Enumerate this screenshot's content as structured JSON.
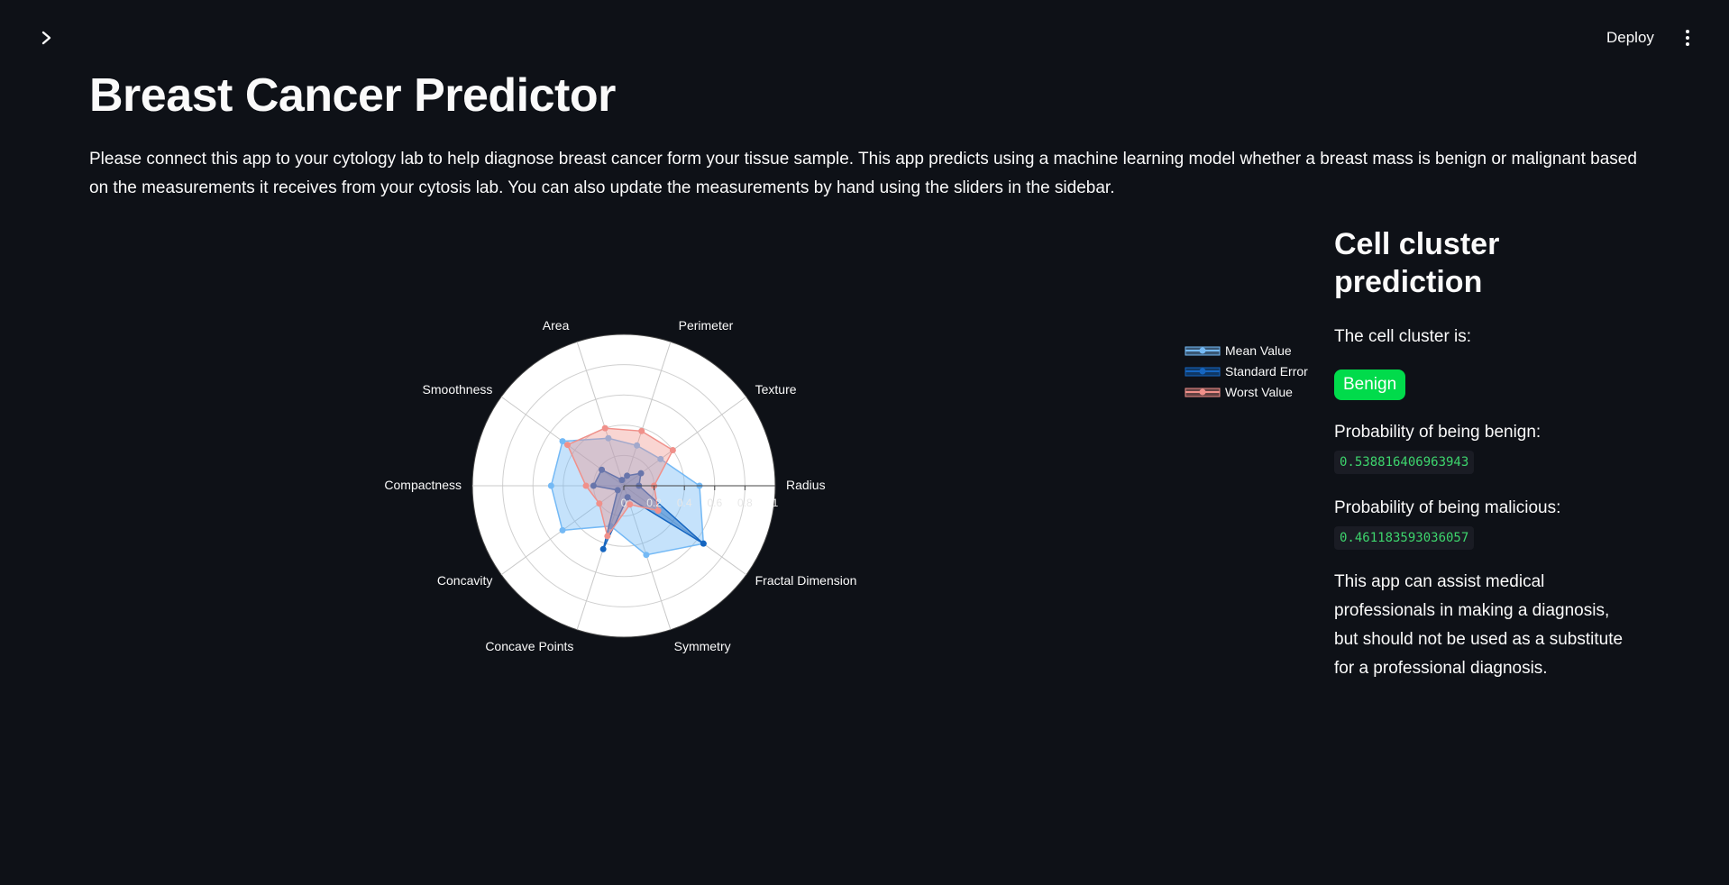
{
  "header": {
    "deploy_label": "Deploy"
  },
  "page": {
    "title": "Breast Cancer Predictor",
    "description": "Please connect this app to your cytology lab to help diagnose breast cancer form your tissue sample. This app predicts using a machine learning model whether a breast mass is benign or malignant based on the measurements it receives from your cytosis lab. You can also update the measurements by hand using the sliders in the sidebar."
  },
  "prediction": {
    "heading": "Cell cluster prediction",
    "cluster_label": "The cell cluster is:",
    "result": "Benign",
    "benign_label": "Probability of being benign:",
    "benign_value": "0.538816406963943",
    "malicious_label": "Probability of being malicious:",
    "malicious_value": "0.461183593036057",
    "disclaimer": "This app can assist medical professionals in making a diagnosis, but should not be used as a substitute for a professional diagnosis."
  },
  "chart_data": {
    "type": "radar",
    "categories": [
      "Radius",
      "Texture",
      "Perimeter",
      "Area",
      "Smoothness",
      "Compactness",
      "Concavity",
      "Concave Points",
      "Symmetry",
      "Fractal Dimension"
    ],
    "radial_ticks": [
      "0",
      "0.2",
      "0.4",
      "0.6",
      "0.8",
      "1"
    ],
    "radial_range": [
      0,
      1
    ],
    "legend_position": "right",
    "series": [
      {
        "name": "Mean Value",
        "color": "#74b9f5",
        "fill": "rgba(116,185,245,0.42)",
        "values": [
          0.5,
          0.3,
          0.28,
          0.33,
          0.5,
          0.48,
          0.5,
          0.28,
          0.48,
          0.65
        ]
      },
      {
        "name": "Standard Error",
        "color": "#1565c0",
        "fill": "rgba(21,101,192,0.45)",
        "values": [
          0.1,
          0.14,
          0.07,
          0.04,
          0.18,
          0.2,
          0.05,
          0.44,
          0.08,
          0.65
        ]
      },
      {
        "name": "Worst Value",
        "color": "#f0908a",
        "fill": "rgba(240,144,138,0.38)",
        "values": [
          0.2,
          0.4,
          0.38,
          0.4,
          0.46,
          0.25,
          0.2,
          0.35,
          0.13,
          0.28
        ]
      }
    ]
  }
}
